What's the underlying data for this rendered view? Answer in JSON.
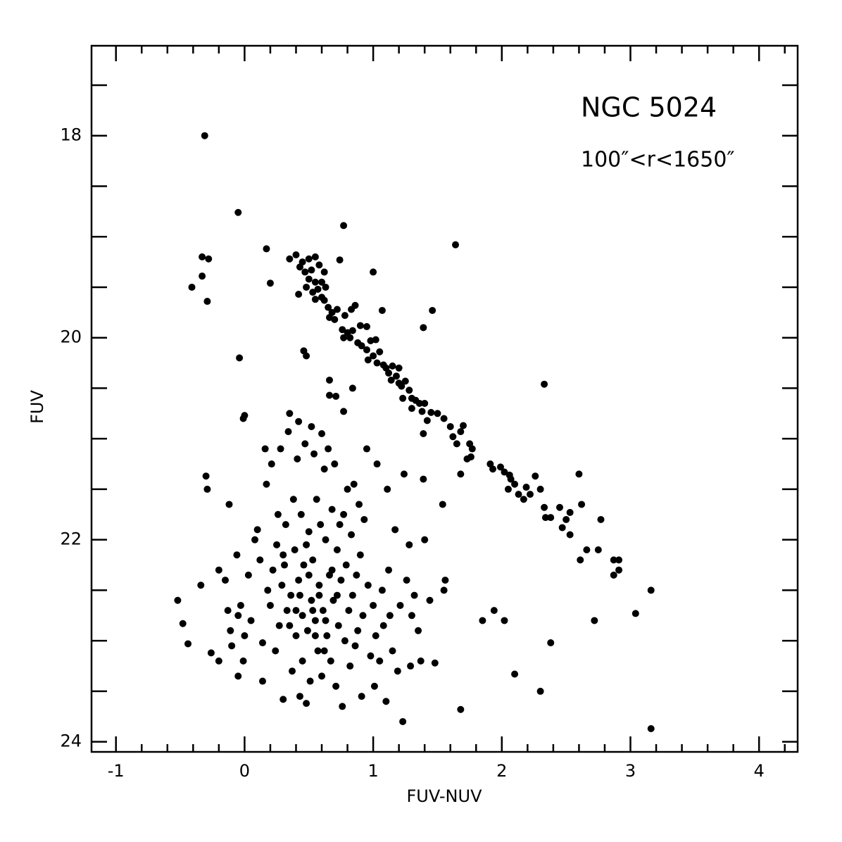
{
  "chart_data": {
    "type": "scatter",
    "annotations": [
      "NGC 5024",
      "100″<r<1650″"
    ],
    "xlabel": "FUV-NUV",
    "ylabel": "FUV",
    "xlim": [
      -1.19,
      4.3
    ],
    "ylim": [
      24.1,
      17.11
    ],
    "xticks": [
      -1,
      0,
      1,
      2,
      3,
      4
    ],
    "yticks": [
      18,
      20,
      22,
      24
    ],
    "xminorticks": [
      -0.8,
      -0.6,
      -0.4,
      -0.2,
      0.2,
      0.4,
      0.6,
      0.8,
      1.2,
      1.4,
      1.6,
      1.8,
      2.2,
      2.4,
      2.6,
      2.8,
      3.2,
      3.4,
      3.6,
      3.8,
      4.2
    ],
    "yminorticks": [
      17.5,
      18.5,
      19,
      19.5,
      20.5,
      21,
      21.5,
      22.5,
      23,
      23.5
    ],
    "color": "#000000",
    "x": [
      -0.31,
      -0.05,
      0.77,
      1.64,
      -0.33,
      -0.28,
      0.17,
      -0.33,
      -0.41,
      -0.29,
      0.2,
      1.0,
      1.07,
      1.46,
      1.39,
      -0.04,
      0.46,
      0.48,
      2.33,
      0.66,
      0.66,
      0.71,
      0.84,
      0.77,
      0.0,
      -0.01,
      0.35,
      0.4,
      0.45,
      0.5,
      0.55,
      0.43,
      0.47,
      0.52,
      0.58,
      0.62,
      0.5,
      0.55,
      0.6,
      0.48,
      0.53,
      0.57,
      0.63,
      0.42,
      0.55,
      0.6,
      0.65,
      0.68,
      0.72,
      0.74,
      0.62,
      0.66,
      0.7,
      0.78,
      0.83,
      0.86,
      0.8,
      0.76,
      0.84,
      0.9,
      0.95,
      0.77,
      0.82,
      0.88,
      0.91,
      0.95,
      0.98,
      1.02,
      1.0,
      0.96,
      1.05,
      1.03,
      1.08,
      1.1,
      1.12,
      1.15,
      1.18,
      1.2,
      1.14,
      1.2,
      1.22,
      1.25,
      1.28,
      1.23,
      1.3,
      1.33,
      1.36,
      1.4,
      1.3,
      1.38,
      1.45,
      1.5,
      1.42,
      1.55,
      1.6,
      1.39,
      1.62,
      1.68,
      1.7,
      1.65,
      1.75,
      1.77,
      1.73,
      1.76,
      1.68,
      1.91,
      1.93,
      1.99,
      2.02,
      2.06,
      2.07,
      2.1,
      2.05,
      2.19,
      2.13,
      2.17,
      2.22,
      2.26,
      2.3,
      2.33,
      2.34,
      2.38,
      2.45,
      2.5,
      2.53,
      2.6,
      2.62,
      2.47,
      2.53,
      2.66,
      2.61,
      2.75,
      2.77,
      2.87,
      2.91,
      2.87,
      2.91,
      3.16,
      3.04,
      2.72,
      3.16,
      2.38,
      2.3,
      2.1,
      1.94,
      2.02,
      1.85,
      1.68,
      1.54,
      -0.52,
      -0.48,
      -0.44,
      -0.34,
      -0.26,
      -0.2,
      -0.2,
      -0.15,
      -0.13,
      -0.11,
      -0.1,
      -0.06,
      -0.05,
      -0.03,
      0.0,
      -0.01,
      -0.05,
      0.03,
      0.05,
      0.08,
      0.1,
      0.12,
      0.14,
      0.14,
      0.16,
      0.17,
      0.18,
      0.2,
      0.21,
      0.22,
      0.24,
      0.25,
      0.26,
      0.27,
      0.28,
      0.29,
      0.3,
      0.31,
      0.32,
      0.33,
      0.34,
      0.35,
      0.36,
      0.37,
      0.38,
      0.39,
      0.4,
      0.41,
      0.42,
      0.42,
      0.43,
      0.44,
      0.45,
      0.46,
      0.47,
      0.48,
      0.48,
      0.49,
      0.5,
      0.51,
      0.52,
      0.52,
      0.53,
      0.54,
      0.55,
      0.56,
      0.57,
      0.58,
      0.59,
      0.6,
      0.6,
      0.61,
      0.62,
      0.63,
      0.64,
      0.65,
      0.66,
      0.67,
      0.68,
      0.69,
      0.7,
      0.71,
      0.72,
      0.73,
      0.74,
      0.75,
      0.76,
      0.77,
      0.78,
      0.79,
      0.8,
      0.81,
      0.82,
      0.83,
      0.84,
      0.85,
      0.86,
      0.87,
      0.88,
      0.89,
      0.9,
      0.91,
      0.92,
      0.93,
      0.95,
      0.96,
      0.98,
      1.0,
      1.01,
      1.02,
      1.03,
      1.05,
      1.07,
      1.08,
      1.1,
      1.11,
      1.12,
      1.13,
      1.15,
      1.17,
      1.19,
      1.21,
      1.23,
      1.24,
      1.26,
      1.28,
      1.29,
      1.3,
      1.32,
      1.35,
      1.37,
      1.39,
      1.4,
      1.44,
      1.48,
      1.55,
      1.56,
      0.3,
      0.43,
      0.53,
      0.55,
      0.5,
      0.58,
      0.45,
      0.62,
      0.35,
      0.4,
      0.63,
      0.68,
      0.72,
      -0.12,
      -0.3,
      -0.29
    ],
    "values": [
      18.0,
      18.76,
      18.89,
      19.08,
      19.2,
      19.22,
      19.12,
      19.39,
      19.5,
      19.64,
      19.46,
      19.35,
      19.73,
      19.73,
      19.9,
      20.2,
      20.13,
      20.18,
      20.46,
      20.42,
      20.57,
      20.58,
      20.5,
      20.73,
      20.77,
      20.8,
      19.22,
      19.18,
      19.25,
      19.22,
      19.2,
      19.3,
      19.35,
      19.33,
      19.28,
      19.35,
      19.42,
      19.45,
      19.45,
      19.5,
      19.55,
      19.52,
      19.5,
      19.57,
      19.62,
      19.6,
      19.7,
      19.75,
      19.72,
      19.23,
      19.63,
      19.8,
      19.82,
      19.78,
      19.72,
      19.68,
      19.95,
      19.92,
      19.93,
      19.88,
      19.89,
      20.0,
      20.0,
      20.05,
      20.08,
      20.12,
      20.03,
      20.02,
      20.18,
      20.22,
      20.14,
      20.25,
      20.27,
      20.3,
      20.35,
      20.28,
      20.38,
      20.3,
      20.42,
      20.45,
      20.48,
      20.43,
      20.52,
      20.6,
      20.6,
      20.62,
      20.65,
      20.65,
      20.7,
      20.73,
      20.74,
      20.75,
      20.82,
      20.8,
      20.88,
      20.95,
      20.98,
      20.93,
      20.87,
      21.05,
      21.05,
      21.1,
      21.2,
      21.18,
      21.35,
      21.25,
      21.3,
      21.28,
      21.33,
      21.36,
      21.4,
      21.45,
      21.5,
      21.48,
      21.55,
      21.6,
      21.55,
      21.37,
      21.5,
      21.68,
      21.78,
      21.78,
      21.68,
      21.8,
      21.73,
      21.35,
      21.65,
      21.88,
      21.95,
      22.1,
      22.2,
      22.1,
      21.8,
      22.2,
      22.2,
      22.35,
      22.3,
      22.5,
      22.73,
      22.8,
      23.87,
      23.02,
      23.5,
      23.33,
      22.7,
      22.8,
      22.8,
      23.68,
      21.65,
      22.6,
      22.83,
      23.03,
      22.45,
      23.12,
      23.2,
      22.3,
      22.4,
      22.7,
      22.9,
      23.05,
      22.15,
      22.75,
      22.65,
      22.95,
      23.2,
      23.35,
      22.35,
      22.8,
      22.0,
      21.9,
      22.2,
      23.02,
      23.4,
      21.1,
      21.45,
      22.5,
      22.65,
      21.25,
      22.3,
      23.1,
      22.05,
      21.75,
      22.85,
      21.1,
      22.45,
      23.58,
      22.25,
      21.85,
      22.7,
      20.93,
      20.75,
      22.55,
      23.3,
      21.6,
      22.1,
      22.95,
      21.2,
      20.83,
      22.4,
      23.55,
      21.75,
      22.75,
      22.25,
      21.05,
      23.62,
      22.05,
      22.9,
      21.92,
      23.4,
      22.6,
      20.88,
      22.2,
      21.15,
      22.8,
      21.6,
      23.1,
      22.45,
      21.85,
      23.35,
      20.95,
      22.7,
      21.3,
      22.0,
      22.95,
      21.1,
      22.35,
      23.2,
      21.7,
      22.6,
      21.25,
      23.45,
      22.1,
      22.85,
      21.85,
      22.4,
      23.65,
      21.75,
      23.0,
      22.25,
      21.5,
      22.7,
      23.25,
      21.95,
      22.55,
      21.45,
      23.05,
      22.35,
      22.9,
      21.65,
      22.15,
      23.55,
      22.75,
      21.8,
      21.1,
      22.45,
      23.15,
      22.65,
      23.45,
      22.95,
      21.25,
      23.2,
      22.5,
      22.85,
      23.6,
      21.5,
      22.3,
      22.75,
      23.1,
      21.9,
      23.3,
      22.65,
      23.8,
      21.35,
      22.4,
      22.05,
      23.25,
      22.75,
      22.55,
      22.9,
      23.2,
      21.4,
      22.0,
      22.6,
      23.22,
      22.5,
      22.4,
      22.15,
      22.55,
      22.7,
      22.95,
      22.35,
      22.55,
      23.2,
      23.1,
      22.85,
      22.7,
      22.8,
      22.3,
      22.55,
      21.65,
      21.37,
      21.5
    ]
  }
}
